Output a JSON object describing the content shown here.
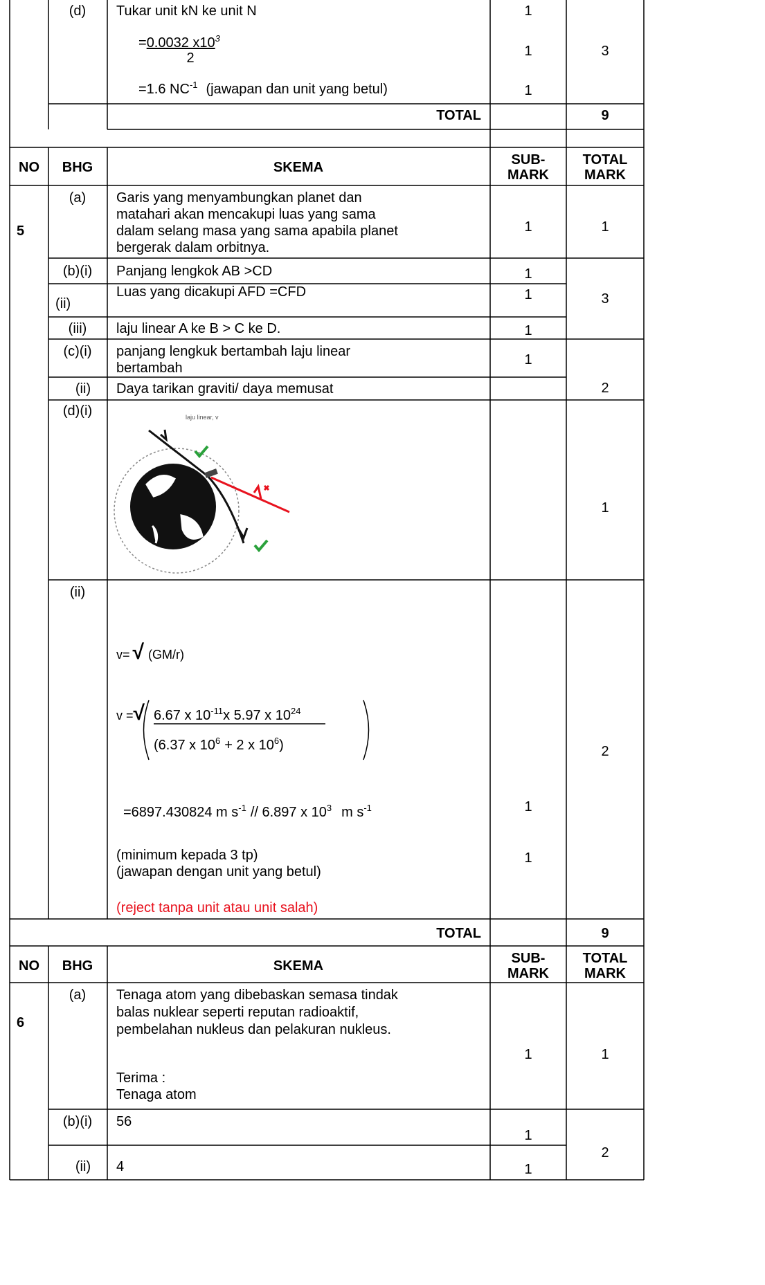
{
  "section_4": {
    "d": {
      "label": "(d)",
      "line_1": "Tukar unit kN ke unit N",
      "formula": {
        "prefix": "=",
        "numerator": "0.0032 x10",
        "power": "3",
        "denominator": "2"
      },
      "answer": {
        "text": "=1.6 NC",
        "power": "-1",
        "note": "(jawapan dan unit yang betul)"
      },
      "sub_marks": [
        1,
        1,
        1
      ],
      "total_mark": 3
    },
    "total": {
      "label": "TOTAL",
      "mark": 9
    }
  },
  "header": {
    "no": "NO",
    "bhg": "BHG",
    "skema": "SKEMA",
    "sub_mark": [
      "SUB-",
      "MARK"
    ],
    "total_mark": [
      "TOTAL",
      "MARK"
    ]
  },
  "section_5": {
    "no": "5",
    "a": {
      "label": "(a)",
      "lines": [
        "Garis yang menyambungkan planet dan",
        "matahari akan mencakupi luas yang sama",
        "dalam selang masa yang sama apabila planet",
        "bergerak dalam orbitnya."
      ],
      "sub_mark": 1,
      "total_mark": 1
    },
    "b": {
      "rows": [
        {
          "label": "(b)(i)",
          "text": "Panjang lengkok AB >CD",
          "sub_mark": 1
        },
        {
          "label": "(ii)",
          "text": "Luas yang dicakupi AFD =CFD",
          "sub_mark": 1
        },
        {
          "label": "(iii)",
          "text": "laju linear A ke B > C ke D.",
          "sub_mark": 1
        }
      ],
      "total_mark": 3
    },
    "c": {
      "rows": [
        {
          "label": "(c)(i)",
          "lines": [
            "panjang lengkuk bertambah laju linear",
            "bertambah"
          ],
          "sub_mark": 1
        },
        {
          "label": "(ii)",
          "lines": [
            "Daya tarikan graviti/ daya memusat"
          ]
        }
      ],
      "total_mark": 2
    },
    "d_i": {
      "label": "(d)(i)",
      "diagram_label": "laju linear, v",
      "total_mark": 1
    },
    "d_ii": {
      "label": "(ii)",
      "formula_1": {
        "lhs": "v=",
        "root": "√",
        "rhs": "(GM/r)"
      },
      "formula_2": {
        "lhs": "v =",
        "root": "√",
        "numerator": [
          "6.67 x 10",
          "-11",
          "x 5.97 x 10",
          "24"
        ],
        "denominator": [
          "(6.37 x 10",
          "6",
          "+ 2 x 10",
          "6",
          ")"
        ]
      },
      "result": [
        "=6897.430824 m s",
        "-1",
        "// 6.897 x 10",
        "3",
        "m s",
        "-1"
      ],
      "notes": [
        "(minimum kepada 3 tp)",
        "(jawapan dengan unit yang betul)"
      ],
      "reject": "(reject tanpa unit atau unit salah)",
      "sub_marks": [
        1,
        1
      ],
      "total_mark": 2
    },
    "total": {
      "label": "TOTAL",
      "mark": 9
    }
  },
  "section_6": {
    "no": "6",
    "a": {
      "label": "(a)",
      "lines": [
        "Tenaga atom yang dibebaskan semasa tindak",
        "balas nuklear seperti reputan radioaktif,",
        "pembelahan nukleus dan pelakuran nukleus.",
        "Terima :",
        "Tenaga atom"
      ],
      "sub_mark": 1,
      "total_mark": 1
    },
    "b": {
      "rows": [
        {
          "label": "(b)(i)",
          "text": "56",
          "sub_mark": 1
        },
        {
          "label": "(ii)",
          "text": "4",
          "sub_mark": 1
        }
      ],
      "total_mark": 2
    }
  }
}
